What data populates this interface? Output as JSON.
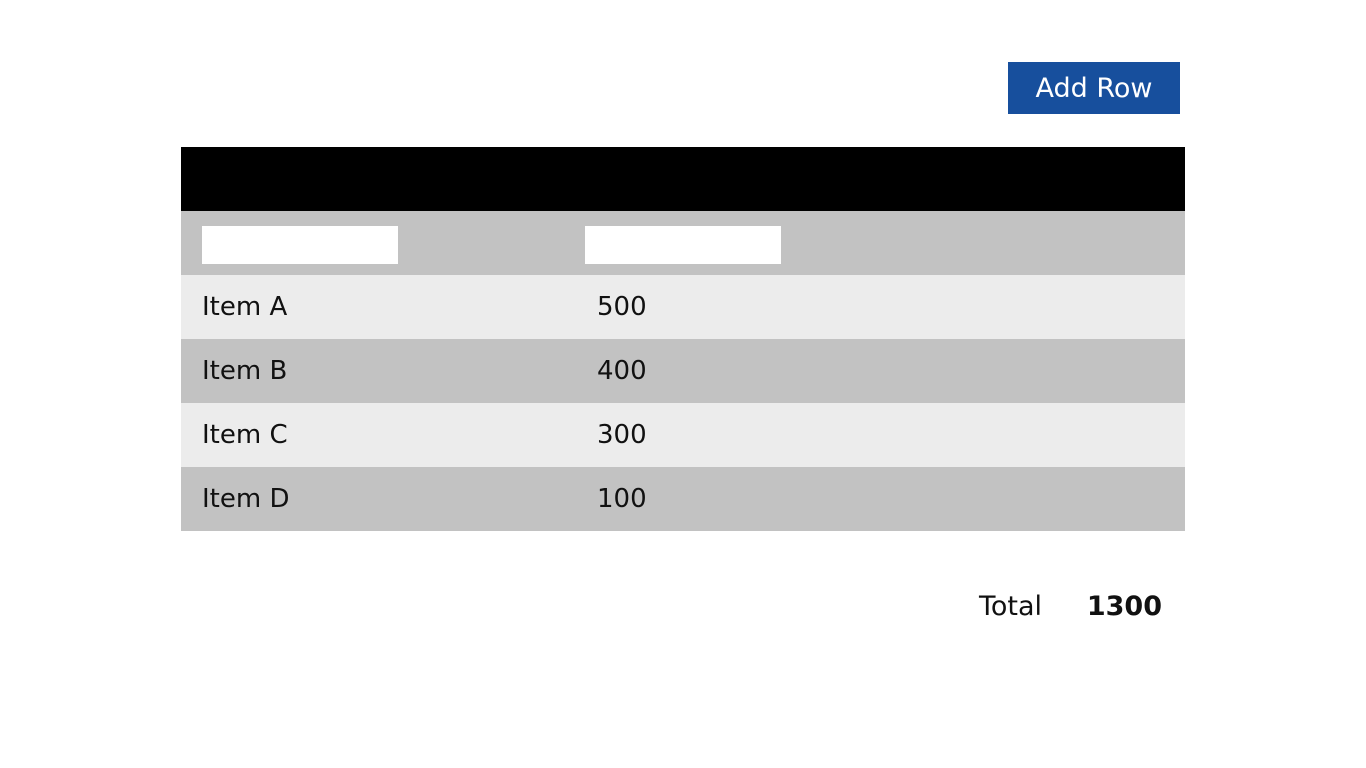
{
  "toolbar": {
    "button": "Add Row"
  },
  "table": {
    "rows": [
      [
        "Item A",
        500
      ],
      [
        "Item B",
        400
      ],
      [
        "Item C",
        300
      ],
      [
        "Item D",
        100
      ]
    ]
  },
  "summary": {
    "label": "Total",
    "value": 1300
  }
}
